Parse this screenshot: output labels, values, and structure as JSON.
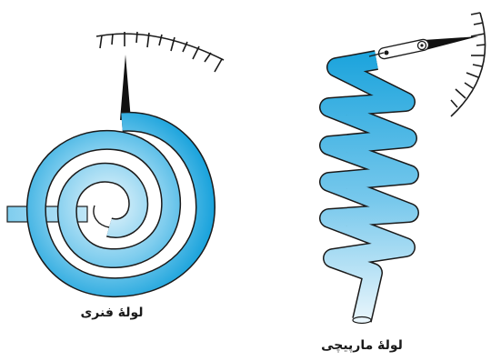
{
  "captions": {
    "spiral_tube": "لولهٔ فنری",
    "helical_tube": "لولهٔ مارپیچی"
  },
  "colors": {
    "tube_dark": "#1aa3dc",
    "tube_light": "#e6f5fc",
    "outline": "#1a1a1a",
    "pointer": "#111111"
  }
}
